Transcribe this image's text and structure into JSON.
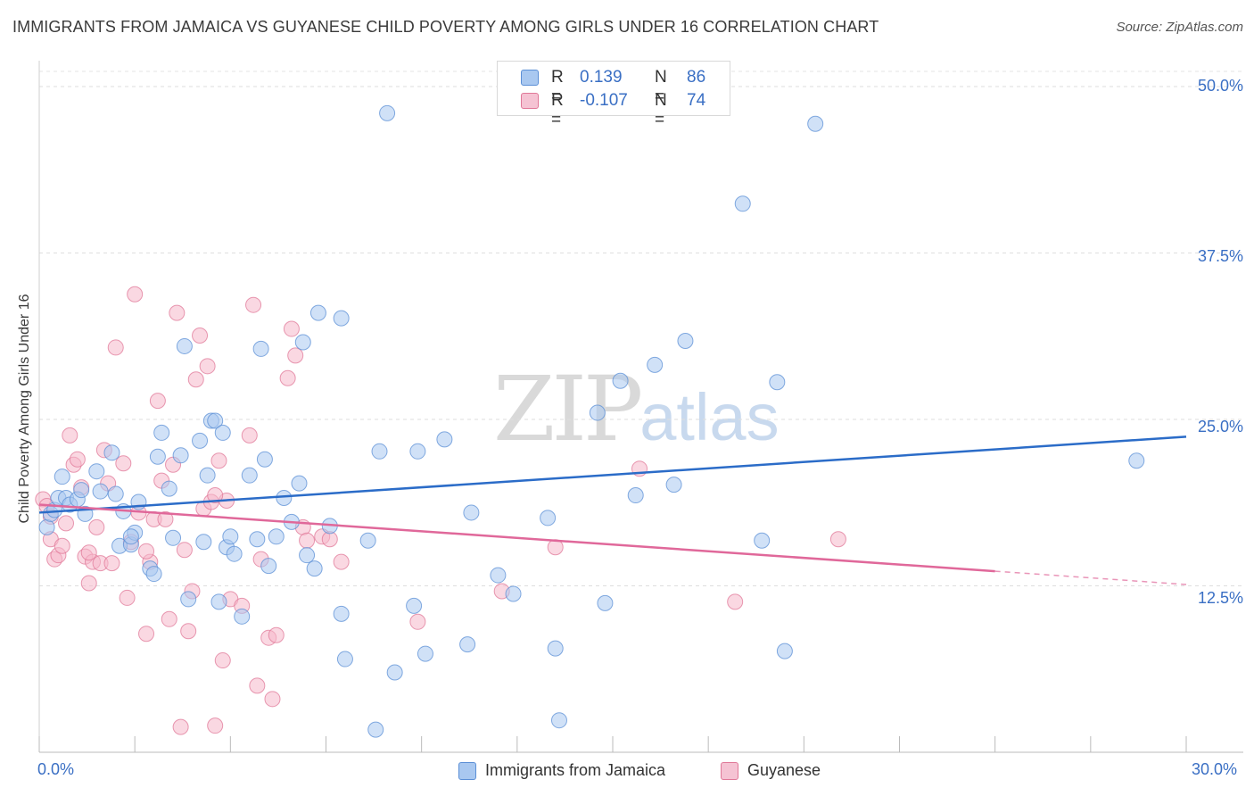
{
  "header": {
    "title": "IMMIGRANTS FROM JAMAICA VS GUYANESE CHILD POVERTY AMONG GIRLS UNDER 16 CORRELATION CHART",
    "source": "Source: ZipAtlas.com"
  },
  "stats": {
    "row1": {
      "r_label": "R =",
      "r_value": "0.139",
      "n_label": "N =",
      "n_value": "86"
    },
    "row2": {
      "r_label": "R =",
      "r_value": "-0.107",
      "n_label": "N =",
      "n_value": "74"
    }
  },
  "legend": {
    "s1": "Immigrants from Jamaica",
    "s2": "Guyanese"
  },
  "watermark": {
    "zip": "ZIP",
    "atlas": "atlas"
  },
  "colors": {
    "blue_fill": "#a9c8f0",
    "blue_stroke": "#5b8fd6",
    "blue_line": "#2b6cc8",
    "pink_fill": "#f5b8cb",
    "pink_stroke": "#e07898",
    "pink_line": "#e0689a"
  },
  "chart_data": {
    "type": "scatter",
    "title": "IMMIGRANTS FROM JAMAICA VS GUYANESE CHILD POVERTY AMONG GIRLS UNDER 16 CORRELATION CHART",
    "xlabel": "",
    "ylabel": "Child Poverty Among Girls Under 16",
    "xlim": [
      0,
      30
    ],
    "ylim": [
      0,
      50
    ],
    "x_tick_labels": [
      "0.0%",
      "30.0%"
    ],
    "y_ticks": [
      12.5,
      25.0,
      37.5,
      50.0
    ],
    "y_tick_labels": [
      "12.5%",
      "25.0%",
      "37.5%",
      "50.0%"
    ],
    "grid": true,
    "legend_position": "bottom-center",
    "series": [
      {
        "name": "Immigrants from Jamaica",
        "r": 0.139,
        "n": 86,
        "trend": {
          "x0": 0,
          "y0": 18.0,
          "x1": 30,
          "y1": 23.7
        },
        "points": [
          [
            0.2,
            16.9
          ],
          [
            0.3,
            17.9
          ],
          [
            0.4,
            18.2
          ],
          [
            0.5,
            19.1
          ],
          [
            0.6,
            20.7
          ],
          [
            0.7,
            19.1
          ],
          [
            0.8,
            18.6
          ],
          [
            1.0,
            19.0
          ],
          [
            1.1,
            19.7
          ],
          [
            1.2,
            17.9
          ],
          [
            1.5,
            21.1
          ],
          [
            1.6,
            19.6
          ],
          [
            1.9,
            22.5
          ],
          [
            2.0,
            19.4
          ],
          [
            2.1,
            15.5
          ],
          [
            2.2,
            18.1
          ],
          [
            2.4,
            15.6
          ],
          [
            2.5,
            16.5
          ],
          [
            2.6,
            18.8
          ],
          [
            2.9,
            13.8
          ],
          [
            3.0,
            13.4
          ],
          [
            3.1,
            22.2
          ],
          [
            3.2,
            24.0
          ],
          [
            3.4,
            19.8
          ],
          [
            3.5,
            16.1
          ],
          [
            3.7,
            22.3
          ],
          [
            3.8,
            30.5
          ],
          [
            3.9,
            11.5
          ],
          [
            4.2,
            23.4
          ],
          [
            4.3,
            15.8
          ],
          [
            4.4,
            20.8
          ],
          [
            4.5,
            24.9
          ],
          [
            4.6,
            24.9
          ],
          [
            4.7,
            11.3
          ],
          [
            4.8,
            24.0
          ],
          [
            4.9,
            15.4
          ],
          [
            5.0,
            16.2
          ],
          [
            5.1,
            14.9
          ],
          [
            5.3,
            10.2
          ],
          [
            5.5,
            20.8
          ],
          [
            5.7,
            16.0
          ],
          [
            5.8,
            30.3
          ],
          [
            5.9,
            22.0
          ],
          [
            6.0,
            14.0
          ],
          [
            6.2,
            16.2
          ],
          [
            6.4,
            19.1
          ],
          [
            6.6,
            17.3
          ],
          [
            6.8,
            20.2
          ],
          [
            6.9,
            30.8
          ],
          [
            7.0,
            14.8
          ],
          [
            7.2,
            13.8
          ],
          [
            7.3,
            33.0
          ],
          [
            7.6,
            17.0
          ],
          [
            7.9,
            32.6
          ],
          [
            7.9,
            10.4
          ],
          [
            8.0,
            7.0
          ],
          [
            8.6,
            15.9
          ],
          [
            8.8,
            1.7
          ],
          [
            8.9,
            22.6
          ],
          [
            9.1,
            48.0
          ],
          [
            9.3,
            6.0
          ],
          [
            9.8,
            11.0
          ],
          [
            9.9,
            22.6
          ],
          [
            10.1,
            7.4
          ],
          [
            10.6,
            23.5
          ],
          [
            11.2,
            8.1
          ],
          [
            11.3,
            18.0
          ],
          [
            12.0,
            13.3
          ],
          [
            12.4,
            11.9
          ],
          [
            13.3,
            17.6
          ],
          [
            13.5,
            7.8
          ],
          [
            13.6,
            2.4
          ],
          [
            14.6,
            25.5
          ],
          [
            14.8,
            11.2
          ],
          [
            15.2,
            27.9
          ],
          [
            15.6,
            19.3
          ],
          [
            16.1,
            29.1
          ],
          [
            16.6,
            20.1
          ],
          [
            16.9,
            30.9
          ],
          [
            18.4,
            41.2
          ],
          [
            18.9,
            15.9
          ],
          [
            19.3,
            27.8
          ],
          [
            19.5,
            7.6
          ],
          [
            20.3,
            47.2
          ],
          [
            28.7,
            21.9
          ],
          [
            2.4,
            16.2
          ]
        ]
      },
      {
        "name": "Guyanese",
        "r": -0.107,
        "n": 74,
        "trend": {
          "x0": 0,
          "y0": 18.6,
          "x1": 25.0,
          "y1": 13.6,
          "dash_x1": 30,
          "dash_y1": 12.6
        },
        "points": [
          [
            0.1,
            19.0
          ],
          [
            0.2,
            18.5
          ],
          [
            0.3,
            16.0
          ],
          [
            0.4,
            14.5
          ],
          [
            0.5,
            14.8
          ],
          [
            0.6,
            15.5
          ],
          [
            0.7,
            17.2
          ],
          [
            0.8,
            23.8
          ],
          [
            0.9,
            21.6
          ],
          [
            1.0,
            22.0
          ],
          [
            1.1,
            19.9
          ],
          [
            1.2,
            14.7
          ],
          [
            1.3,
            12.7
          ],
          [
            1.4,
            14.3
          ],
          [
            1.5,
            16.9
          ],
          [
            1.6,
            14.2
          ],
          [
            1.7,
            22.7
          ],
          [
            1.8,
            20.2
          ],
          [
            1.9,
            14.2
          ],
          [
            2.0,
            30.4
          ],
          [
            2.2,
            21.7
          ],
          [
            2.3,
            11.6
          ],
          [
            2.4,
            15.8
          ],
          [
            2.5,
            34.4
          ],
          [
            2.6,
            18.0
          ],
          [
            2.8,
            8.9
          ],
          [
            2.9,
            14.3
          ],
          [
            3.0,
            17.5
          ],
          [
            3.1,
            26.4
          ],
          [
            3.2,
            20.4
          ],
          [
            3.3,
            17.5
          ],
          [
            3.4,
            10.0
          ],
          [
            3.5,
            21.6
          ],
          [
            3.6,
            33.0
          ],
          [
            3.7,
            1.9
          ],
          [
            3.8,
            15.2
          ],
          [
            3.9,
            9.1
          ],
          [
            4.0,
            12.1
          ],
          [
            4.1,
            28.0
          ],
          [
            4.2,
            31.3
          ],
          [
            4.3,
            18.3
          ],
          [
            4.4,
            29.0
          ],
          [
            4.5,
            18.8
          ],
          [
            4.6,
            2.0
          ],
          [
            4.7,
            21.9
          ],
          [
            4.8,
            6.9
          ],
          [
            4.9,
            18.9
          ],
          [
            5.0,
            11.5
          ],
          [
            5.3,
            11.0
          ],
          [
            5.5,
            23.8
          ],
          [
            5.6,
            33.6
          ],
          [
            5.7,
            5.0
          ],
          [
            5.8,
            14.5
          ],
          [
            6.0,
            8.6
          ],
          [
            6.1,
            4.0
          ],
          [
            6.2,
            8.8
          ],
          [
            6.5,
            28.1
          ],
          [
            6.6,
            31.8
          ],
          [
            6.7,
            29.8
          ],
          [
            6.9,
            16.9
          ],
          [
            7.0,
            15.9
          ],
          [
            7.4,
            16.2
          ],
          [
            7.6,
            16.0
          ],
          [
            7.9,
            14.3
          ],
          [
            9.9,
            9.8
          ],
          [
            12.1,
            12.1
          ],
          [
            13.5,
            15.4
          ],
          [
            15.7,
            21.3
          ],
          [
            18.2,
            11.3
          ],
          [
            20.9,
            16.0
          ],
          [
            0.3,
            17.7
          ],
          [
            1.3,
            15.0
          ],
          [
            4.6,
            19.3
          ],
          [
            2.8,
            15.1
          ]
        ]
      }
    ]
  }
}
